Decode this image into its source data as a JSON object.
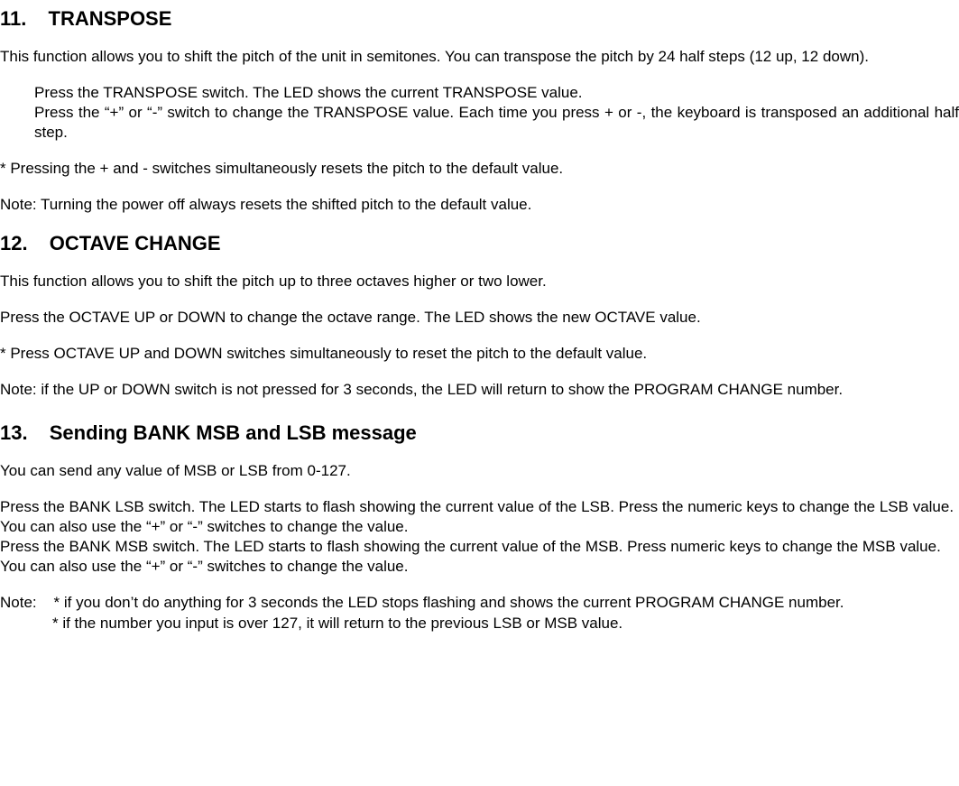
{
  "section11": {
    "number": "11.",
    "title": "TRANSPOSE",
    "intro": "This function allows you to shift the pitch of the unit in semitones. You can transpose the pitch by 24 half steps (12 up, 12 down).",
    "step1": "Press the TRANSPOSE switch. The LED shows the current  TRANSPOSE value.",
    "step2": "Press the “+” or “-” switch to change the TRANSPOSE value. Each time you press + or -, the keyboard is transposed an additional half step.",
    "reset": "* Pressing the + and - switches simultaneously resets the pitch to the default value.",
    "note": "Note: Turning the power off always resets the shifted pitch to the default value."
  },
  "section12": {
    "number": "12.",
    "title": "OCTAVE CHANGE",
    "intro": "This function allows you to shift the pitch up to three octaves higher or two lower.",
    "instruction": "Press the OCTAVE UP or DOWN to change the octave range. The LED shows the new OCTAVE value.",
    "reset": "* Press OCTAVE UP and DOWN switches simultaneously to reset the pitch to the default value.",
    "note": "Note: if the UP or DOWN switch is not pressed for 3 seconds, the LED will return to show the PROGRAM CHANGE number."
  },
  "section13": {
    "number": "13.",
    "title": "Sending BANK MSB and LSB message",
    "intro": "You can send any value of MSB or LSB from 0-127.",
    "lsb": "Press the BANK LSB switch. The LED starts to flash showing the current value of the LSB. Press the numeric keys to change the LSB value. You can also use the “+” or “-” switches to change the value.",
    "msb": "Press the BANK MSB switch. The LED starts to flash showing the current value of the MSB. Press numeric keys to change the MSB value. You can also use the “+” or “-” switches to change the value.",
    "note_line1": "Note:    * if you don’t do anything for 3 seconds the LED stops flashing and shows the current PROGRAM CHANGE number.",
    "note_line2": "* if the number you input is over 127, it will return to the previous  LSB or MSB value."
  }
}
